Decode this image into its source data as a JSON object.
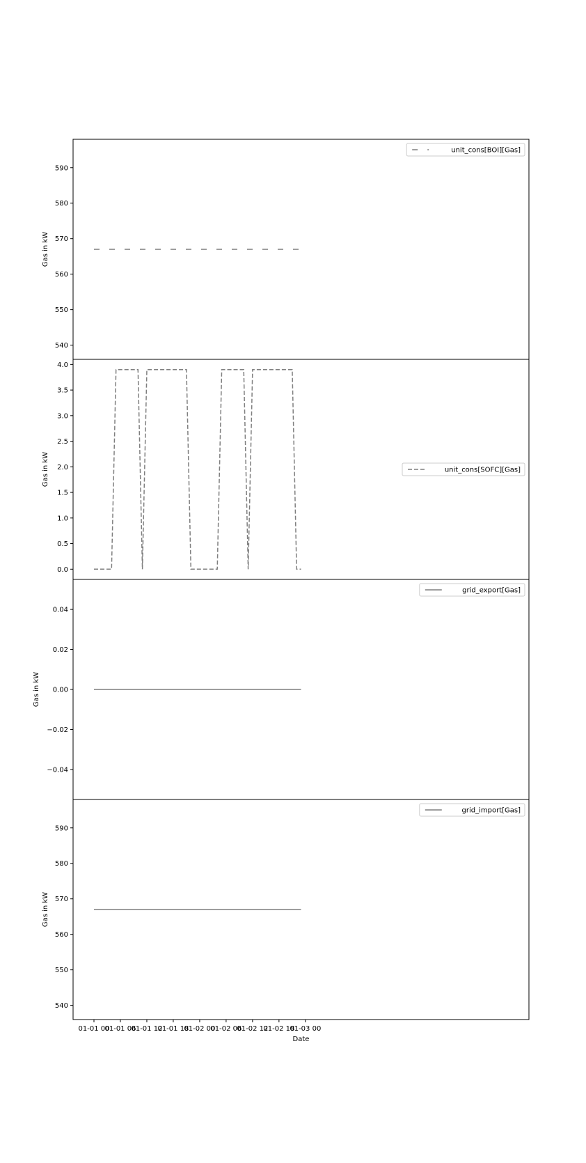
{
  "colors": {
    "series_line": "#7f7f7f",
    "axes": "#000000",
    "legend_border": "#cccccc"
  },
  "chart_data": [
    {
      "type": "line",
      "ylabel": "Gas in kW",
      "ylim": [
        536,
        598
      ],
      "yticks": [
        540,
        550,
        560,
        570,
        580,
        590
      ],
      "ytick_labels": [
        "540",
        "550",
        "560",
        "570",
        "580",
        "590"
      ],
      "legend_position": "upper-right",
      "series": [
        {
          "name": "unit_cons[BOI][Gas]",
          "style": "dashed-long",
          "x": [
            "01-01 00",
            "01-02 23"
          ],
          "values": [
            567,
            567
          ]
        }
      ]
    },
    {
      "type": "line",
      "ylabel": "Gas in kW",
      "ylim": [
        -0.2,
        4.1
      ],
      "yticks": [
        0,
        0.5,
        1,
        1.5,
        2,
        2.5,
        3,
        3.5,
        4
      ],
      "ytick_labels": [
        "0.0",
        "0.5",
        "1.0",
        "1.5",
        "2.0",
        "2.5",
        "3.0",
        "3.5",
        "4.0"
      ],
      "legend_position": "center-right",
      "series": [
        {
          "name": "unit_cons[SOFC][Gas]",
          "style": "dashed",
          "x": [
            "01-01 00",
            "01-01 04",
            "01-01 05",
            "01-01 10",
            "01-01 11",
            "01-01 12",
            "01-01 21",
            "01-01 22",
            "01-02 04",
            "01-02 05",
            "01-02 10",
            "01-02 11",
            "01-02 12",
            "01-02 21",
            "01-02 22",
            "01-02 23"
          ],
          "values": [
            0,
            0,
            3.9,
            3.9,
            0,
            3.9,
            3.9,
            0,
            0,
            3.9,
            3.9,
            0,
            3.9,
            3.9,
            0,
            0
          ]
        }
      ]
    },
    {
      "type": "line",
      "ylabel": "Gas in kW",
      "ylim": [
        -0.055,
        0.055
      ],
      "yticks": [
        -0.04,
        -0.02,
        0,
        0.02,
        0.04
      ],
      "ytick_labels": [
        "−0.04",
        "−0.02",
        "0.00",
        "0.02",
        "0.04"
      ],
      "legend_position": "upper-right",
      "series": [
        {
          "name": "grid_export[Gas]",
          "style": "solid",
          "x": [
            "01-01 00",
            "01-02 23"
          ],
          "values": [
            0,
            0
          ]
        }
      ]
    },
    {
      "type": "line",
      "xlabel": "Date",
      "ylabel": "Gas in kW",
      "ylim": [
        536,
        598
      ],
      "yticks": [
        540,
        550,
        560,
        570,
        580,
        590
      ],
      "ytick_labels": [
        "540",
        "550",
        "560",
        "570",
        "580",
        "590"
      ],
      "xticks": [
        "01-01 00",
        "01-01 06",
        "01-01 12",
        "01-01 18",
        "01-02 00",
        "01-02 06",
        "01-02 12",
        "01-02 18",
        "01-03 00"
      ],
      "legend_position": "upper-right",
      "series": [
        {
          "name": "grid_import[Gas]",
          "style": "solid",
          "x": [
            "01-01 00",
            "01-02 23"
          ],
          "values": [
            567,
            567
          ]
        }
      ]
    }
  ]
}
